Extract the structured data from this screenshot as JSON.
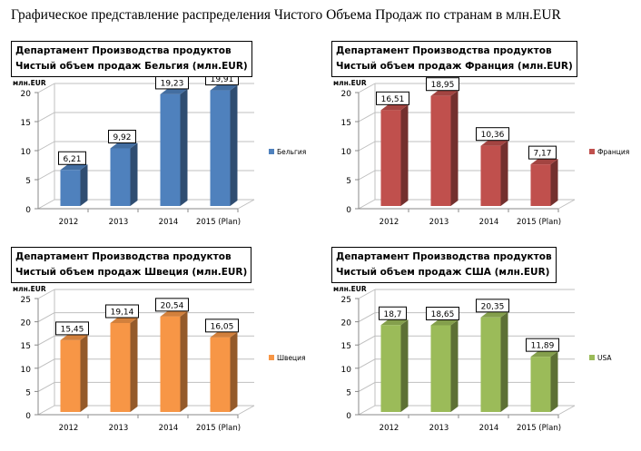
{
  "title": "Графическое представление распределения Чистого Объема Продаж по странам в млн.EUR",
  "chart_data": [
    {
      "type": "bar",
      "title_line1": "Департамент Производства продуктов",
      "title_line2": "Чистый  объем продаж Бельгия (млн.EUR)",
      "ylabel": "млн.EUR",
      "categories": [
        "2012",
        "2013",
        "2014",
        "2015 (Plan)"
      ],
      "series": [
        {
          "name": "Бельгия",
          "values": [
            6.21,
            9.92,
            19.23,
            19.91
          ],
          "labels": [
            "6,21",
            "9,92",
            "19,23",
            "19,91"
          ],
          "color": "#4f81bd"
        }
      ],
      "ylim": [
        0,
        20
      ],
      "yticks": [
        0,
        5,
        10,
        15,
        20
      ],
      "grid": true,
      "legend": "right"
    },
    {
      "type": "bar",
      "title_line1": "Департамент Производства продуктов",
      "title_line2": "Чистый  объем продаж Франция  (млн.EUR)",
      "ylabel": "млн.EUR",
      "categories": [
        "2012",
        "2013",
        "2014",
        "2015 (Plan)"
      ],
      "series": [
        {
          "name": "Франция",
          "values": [
            16.51,
            18.95,
            10.36,
            7.17
          ],
          "labels": [
            "16,51",
            "18,95",
            "10,36",
            "7,17"
          ],
          "color": "#c0504d"
        }
      ],
      "ylim": [
        0,
        20
      ],
      "yticks": [
        0,
        5,
        10,
        15,
        20
      ],
      "grid": true,
      "legend": "right"
    },
    {
      "type": "bar",
      "title_line1": "Департамент Производства продуктов",
      "title_line2": "Чистый  объем продаж Швеция (млн.EUR)",
      "ylabel": "млн.EUR",
      "categories": [
        "2012",
        "2013",
        "2014",
        "2015 (Plan)"
      ],
      "series": [
        {
          "name": "Швеция",
          "values": [
            15.45,
            19.14,
            20.54,
            16.05
          ],
          "labels": [
            "15,45",
            "19,14",
            "20,54",
            "16,05"
          ],
          "color": "#f79646"
        }
      ],
      "ylim": [
        0,
        25
      ],
      "yticks": [
        0,
        5,
        10,
        15,
        20,
        25
      ],
      "grid": true,
      "legend": "right"
    },
    {
      "type": "bar",
      "title_line1": "Департамент Производства продуктов",
      "title_line2": "Чистый  объем продаж США (млн.EUR)",
      "ylabel": "млн.EUR",
      "categories": [
        "2012",
        "2013",
        "2014",
        "2015 (Plan)"
      ],
      "series": [
        {
          "name": "USA",
          "values": [
            18.7,
            18.65,
            20.35,
            11.89
          ],
          "labels": [
            "18,7",
            "18,65",
            "20,35",
            "11,89"
          ],
          "color": "#9bbb59"
        }
      ],
      "ylim": [
        0,
        25
      ],
      "yticks": [
        0,
        5,
        10,
        15,
        20,
        25
      ],
      "grid": true,
      "legend": "right"
    }
  ]
}
